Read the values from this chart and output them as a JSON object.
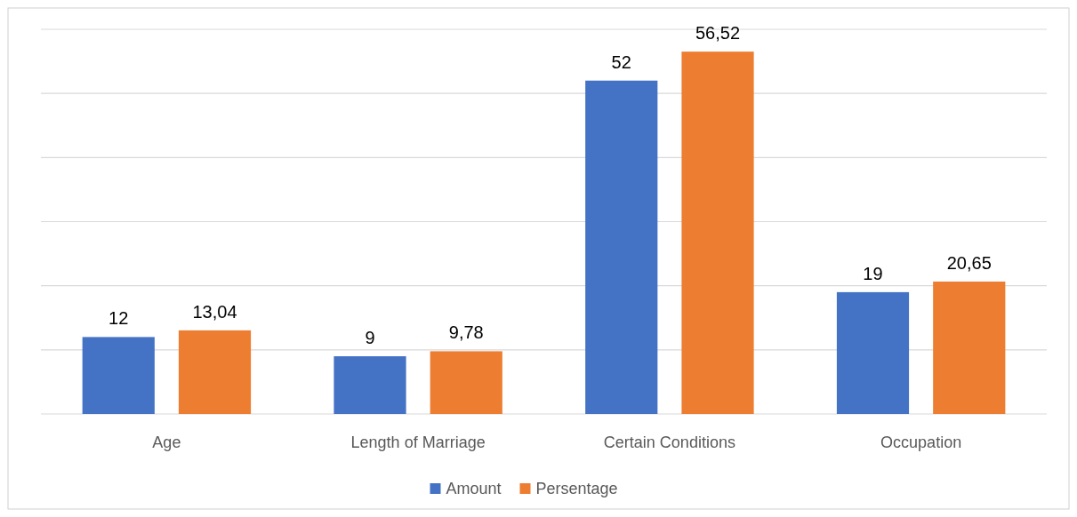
{
  "chart_data": {
    "type": "bar",
    "categories": [
      "Age",
      "Length of Marriage",
      "Certain Conditions",
      "Occupation"
    ],
    "series": [
      {
        "name": "Amount",
        "color": "#4472c4",
        "values": [
          12,
          9,
          52,
          19
        ],
        "value_labels": [
          "12",
          "9",
          "52",
          "19"
        ]
      },
      {
        "name": "Persentage",
        "color": "#ed7d31",
        "values": [
          13.04,
          9.78,
          56.52,
          20.65
        ],
        "value_labels": [
          "13,04",
          "9,78",
          "56,52",
          "20,65"
        ]
      }
    ],
    "ylim": [
      0,
      60
    ],
    "yticks": [
      {
        "value": 0,
        "label": null
      },
      {
        "value": 10,
        "label": null
      },
      {
        "value": 20,
        "label": null
      },
      {
        "value": 30,
        "label": null
      },
      {
        "value": 40,
        "label": null
      },
      {
        "value": 50,
        "label": null
      },
      {
        "value": 60,
        "label": null
      }
    ],
    "tick_labels": "x",
    "grid": "y",
    "legend": "bottom"
  }
}
